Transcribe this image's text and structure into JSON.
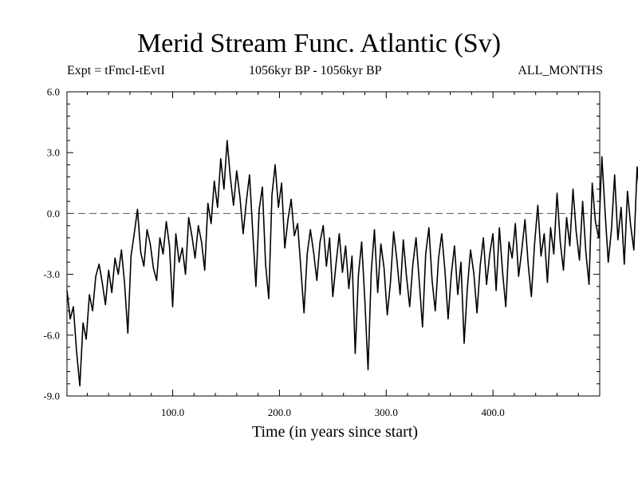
{
  "chart_data": {
    "type": "line",
    "title": "Merid Stream Func. Atlantic (Sv)",
    "experiment_label": "Expt = tFmcI-tEvtI",
    "period_label": "1056kyr BP - 1056kyr BP",
    "months_label": "ALL_MONTHS",
    "xlabel": "Time (in years since start)",
    "ylabel": "",
    "xlim": [
      1,
      500
    ],
    "ylim": [
      -9,
      6
    ],
    "x_ticks": [
      100,
      200,
      300,
      400
    ],
    "x_tick_labels": [
      "100.0",
      "200.0",
      "300.0",
      "400.0"
    ],
    "y_ticks": [
      6,
      3,
      0,
      -3,
      -6,
      -9
    ],
    "y_tick_labels": [
      "6.0",
      "3.0",
      "0.0",
      "-3.0",
      "-6.0",
      "-9.0"
    ],
    "reference_line": 0,
    "series": [
      {
        "name": "Merid Stream Func. Atlantic",
        "x_start": 1,
        "x_step": 3,
        "values": [
          -3.8,
          -5.2,
          -4.6,
          -6.8,
          -8.5,
          -5.4,
          -6.2,
          -4.0,
          -4.8,
          -3.1,
          -2.5,
          -3.4,
          -4.5,
          -2.8,
          -3.9,
          -2.2,
          -3.0,
          -1.8,
          -3.5,
          -5.9,
          -2.1,
          -1.0,
          0.2,
          -1.9,
          -2.6,
          -0.8,
          -1.5,
          -2.7,
          -3.3,
          -1.2,
          -2.0,
          -0.4,
          -1.6,
          -4.6,
          -1.0,
          -2.4,
          -1.7,
          -3.0,
          -0.2,
          -1.1,
          -2.2,
          -0.6,
          -1.4,
          -2.8,
          0.5,
          -0.5,
          1.6,
          0.3,
          2.7,
          1.2,
          3.6,
          1.8,
          0.4,
          2.1,
          0.8,
          -1.0,
          0.6,
          1.9,
          -0.9,
          -3.6,
          0.2,
          1.3,
          -2.5,
          -4.2,
          0.9,
          2.4,
          0.3,
          1.5,
          -1.7,
          -0.3,
          0.7,
          -1.1,
          -0.5,
          -2.7,
          -4.9,
          -2.0,
          -0.8,
          -1.9,
          -3.3,
          -1.4,
          -0.6,
          -2.6,
          -1.2,
          -4.1,
          -2.5,
          -1.0,
          -2.9,
          -1.6,
          -3.7,
          -2.1,
          -6.9,
          -3.0,
          -1.4,
          -4.3,
          -7.7,
          -2.9,
          -0.8,
          -3.9,
          -1.5,
          -2.7,
          -5.0,
          -3.4,
          -0.9,
          -2.3,
          -4.0,
          -1.3,
          -3.1,
          -4.6,
          -2.5,
          -1.2,
          -3.4,
          -5.6,
          -2.0,
          -0.7,
          -3.3,
          -4.8,
          -2.2,
          -1.0,
          -2.8,
          -5.2,
          -3.0,
          -1.6,
          -4.0,
          -2.4,
          -6.4,
          -3.7,
          -1.8,
          -2.9,
          -4.9,
          -2.6,
          -1.2,
          -3.5,
          -2.0,
          -1.0,
          -3.8,
          -0.7,
          -2.9,
          -4.6,
          -1.4,
          -2.2,
          -0.5,
          -3.1,
          -1.8,
          -0.3,
          -2.5,
          -4.1,
          -1.5,
          0.4,
          -2.1,
          -1.0,
          -3.4,
          -0.7,
          -2.0,
          1.0,
          -1.4,
          -2.8,
          -0.2,
          -1.6,
          1.2,
          -0.9,
          -2.3,
          0.6,
          -1.9,
          -3.5,
          1.5,
          -0.4,
          -1.2,
          2.8,
          0.1,
          -2.4,
          -0.8,
          1.9,
          -1.3,
          0.3,
          -2.5,
          1.1,
          -0.6,
          -1.8,
          2.3,
          0.5,
          -1.1,
          0.9,
          4.3,
          -0.3,
          -2.6,
          1.7,
          0.2,
          -1.4,
          2.6,
          -0.7,
          0.8,
          -1.9,
          1.4,
          0.1,
          -0.9,
          2.5,
          0.6,
          -0.4,
          2.2,
          -1.2,
          0.7,
          1.9,
          -0.8,
          0.3,
          2.9,
          -0.5,
          1.2,
          3.9,
          0.4,
          -1.3,
          1.6,
          -0.2,
          2.1,
          0.5,
          -0.9,
          1.3,
          3.3,
          -0.6,
          1.0,
          -1.5,
          0.6,
          2.2,
          -0.4,
          0.9,
          -2.1,
          0.2,
          -1.0,
          1.4,
          -3.4,
          -0.3,
          0.8,
          -0.8,
          1.6,
          -2.2,
          0.3,
          -1.3,
          1.1,
          -0.5,
          -2.8,
          0.2,
          -1.1,
          0.9,
          -0.7,
          -2.4,
          0.5,
          -3.5,
          -0.4,
          0.7,
          -1.8,
          2.5,
          -2.6,
          1.8
        ]
      }
    ]
  }
}
